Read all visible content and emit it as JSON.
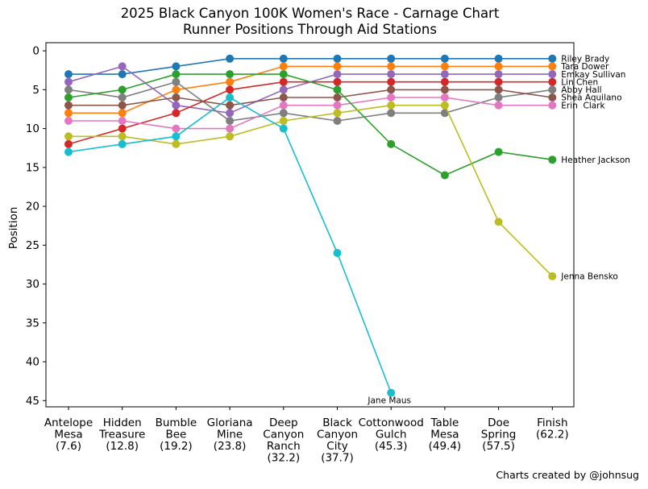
{
  "footer": "Charts created by @johnsug",
  "chart_data": {
    "type": "line",
    "title": "2025 Black Canyon 100K Women's Race - Carnage Chart",
    "subtitle": "Runner Positions Through Aid Stations",
    "xlabel": "",
    "ylabel": "Position",
    "y_axis_inverted": true,
    "grid": false,
    "ylim": [
      -1.05,
      45.8
    ],
    "y_ticks": [
      0,
      5,
      10,
      15,
      20,
      25,
      30,
      35,
      40,
      45
    ],
    "stations": [
      {
        "name": "Antelope Mesa (7.6)",
        "mile": 7.6,
        "lines": [
          "Antelope",
          "Mesa",
          "(7.6)"
        ]
      },
      {
        "name": "Hidden Treasure (12.8)",
        "mile": 12.8,
        "lines": [
          "Hidden",
          "Treasure",
          "(12.8)"
        ]
      },
      {
        "name": "Bumble Bee (19.2)",
        "mile": 19.2,
        "lines": [
          "Bumble",
          "Bee",
          "(19.2)"
        ]
      },
      {
        "name": "Gloriana Mine (23.8)",
        "mile": 23.8,
        "lines": [
          "Gloriana",
          "Mine",
          "(23.8)"
        ]
      },
      {
        "name": "Deep Canyon Ranch (32.2)",
        "mile": 32.2,
        "lines": [
          "Deep",
          "Canyon",
          "Ranch",
          "(32.2)"
        ]
      },
      {
        "name": "Black Canyon City (37.7)",
        "mile": 37.7,
        "lines": [
          "Black",
          "Canyon",
          "City",
          "(37.7)"
        ]
      },
      {
        "name": "Cottonwood Gulch (45.3)",
        "mile": 45.3,
        "lines": [
          "Cottonwood",
          "Gulch",
          "(45.3)"
        ]
      },
      {
        "name": "Table Mesa (49.4)",
        "mile": 49.4,
        "lines": [
          "Table",
          "Mesa",
          "(49.4)"
        ]
      },
      {
        "name": "Doe Spring (57.5)",
        "mile": 57.5,
        "lines": [
          "Doe",
          "Spring",
          "(57.5)"
        ]
      },
      {
        "name": "Finish (62.2)",
        "mile": 62.2,
        "lines": [
          "Finish",
          "(62.2)"
        ]
      }
    ],
    "series": [
      {
        "name": "Riley Brady",
        "color": "#1f77b4",
        "label_placement": "right",
        "values": [
          3,
          3,
          2,
          1,
          1,
          1,
          1,
          1,
          1,
          1
        ]
      },
      {
        "name": "Tara Dower",
        "color": "#ff7f0e",
        "label_placement": "right",
        "values": [
          8,
          8,
          5,
          4,
          2,
          2,
          2,
          2,
          2,
          2
        ]
      },
      {
        "name": "Emkay Sullivan",
        "color": "#9467bd",
        "label_placement": "right",
        "values": [
          4,
          2,
          7,
          8,
          5,
          3,
          3,
          3,
          3,
          3
        ]
      },
      {
        "name": "Lin Chen",
        "color": "#d62728",
        "label_placement": "right",
        "values": [
          12,
          10,
          8,
          5,
          4,
          4,
          4,
          4,
          4,
          4
        ]
      },
      {
        "name": "Abby Hall",
        "color": "#7f7f7f",
        "label_placement": "right",
        "values": [
          5,
          6,
          4,
          9,
          8,
          9,
          8,
          8,
          6,
          5
        ]
      },
      {
        "name": "Shea Aquilano",
        "color": "#8c564b",
        "label_placement": "right",
        "values": [
          7,
          7,
          6,
          7,
          6,
          6,
          5,
          5,
          5,
          6
        ]
      },
      {
        "name": "Erin  Clark",
        "color": "#e377c2",
        "label_placement": "right",
        "values": [
          9,
          9,
          10,
          10,
          7,
          7,
          6,
          6,
          7,
          7
        ]
      },
      {
        "name": "Heather Jackson",
        "color": "#2ca02c",
        "label_placement": "right",
        "values": [
          6,
          5,
          3,
          3,
          3,
          5,
          12,
          16,
          13,
          14
        ]
      },
      {
        "name": "Jenna Bensko",
        "color": "#bcbd22",
        "label_placement": "right",
        "values": [
          11,
          11,
          12,
          11,
          9,
          8,
          7,
          7,
          22,
          29
        ]
      },
      {
        "name": "Jane Maus",
        "color": "#17becf",
        "label_placement": "below",
        "values": [
          13,
          12,
          11,
          6,
          10,
          26,
          44,
          null,
          null,
          null
        ]
      }
    ]
  }
}
